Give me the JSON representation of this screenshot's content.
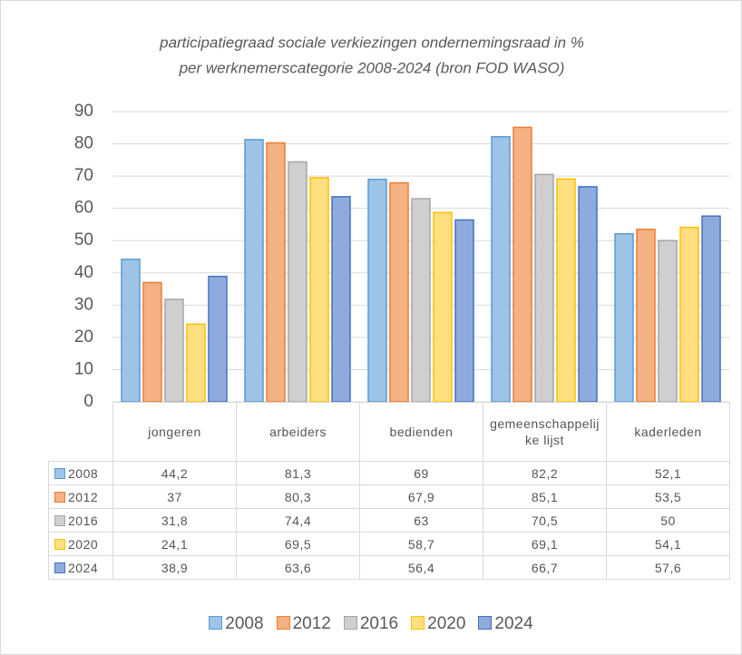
{
  "chart_data": {
    "type": "bar",
    "title": [
      "participatiegraad sociale verkiezingen ondernemingsraad in %",
      "per werknemerscategorie 2008-2024 (bron FOD WASO)"
    ],
    "categories": [
      "jongeren",
      "arbeiders",
      "bedienden",
      "gemeenschappelijke lijst",
      "kaderleden"
    ],
    "series": [
      {
        "name": "2008",
        "color": "#9dc3e6",
        "border": "#5b9bd5",
        "values": [
          44.2,
          81.3,
          69,
          82.2,
          52.1
        ],
        "value_labels": [
          "44,2",
          "81,3",
          "69",
          "82,2",
          "52,1"
        ]
      },
      {
        "name": "2012",
        "color": "#f4b183",
        "border": "#ed7d31",
        "values": [
          37,
          80.3,
          67.9,
          85.1,
          53.5
        ],
        "value_labels": [
          "37",
          "80,3",
          "67,9",
          "85,1",
          "53,5"
        ]
      },
      {
        "name": "2016",
        "color": "#cfcfcf",
        "border": "#a5a5a5",
        "values": [
          31.8,
          74.4,
          63,
          70.5,
          50
        ],
        "value_labels": [
          "31,8",
          "74,4",
          "63",
          "70,5",
          "50"
        ]
      },
      {
        "name": "2020",
        "color": "#ffdf7f",
        "border": "#ffc000",
        "values": [
          24.1,
          69.5,
          58.7,
          69.1,
          54.1
        ],
        "value_labels": [
          "24,1",
          "69,5",
          "58,7",
          "69,1",
          "54,1"
        ]
      },
      {
        "name": "2024",
        "color": "#8faadc",
        "border": "#4472c4",
        "values": [
          38.9,
          63.6,
          56.4,
          66.7,
          57.6
        ],
        "value_labels": [
          "38,9",
          "63,6",
          "56,4",
          "66,7",
          "57,6"
        ]
      }
    ],
    "ylim": [
      0,
      90
    ],
    "yticks": [
      0,
      10,
      20,
      30,
      40,
      50,
      60,
      70,
      80,
      90
    ],
    "grid": true
  }
}
